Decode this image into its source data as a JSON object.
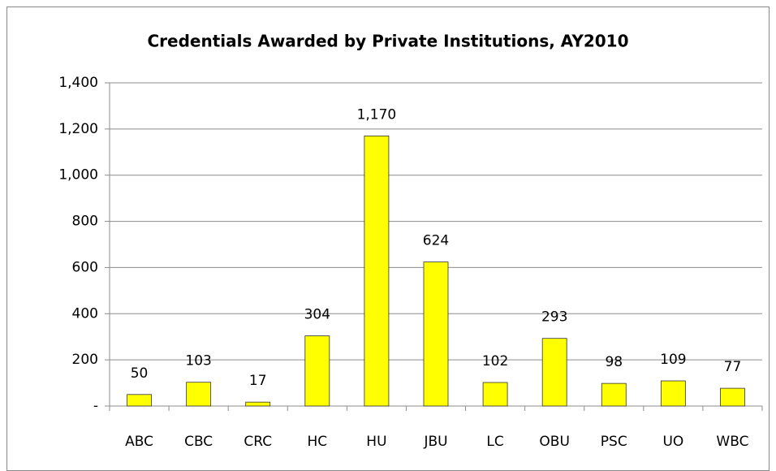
{
  "chart_data": {
    "type": "bar",
    "title": "Credentials Awarded by Private Institutions, AY2010",
    "categories": [
      "ABC",
      "CBC",
      "CRC",
      "HC",
      "HU",
      "JBU",
      "LC",
      "OBU",
      "PSC",
      "UO",
      "WBC"
    ],
    "values": [
      50,
      103,
      17,
      304,
      1170,
      624,
      102,
      293,
      98,
      109,
      77
    ],
    "value_labels": [
      "50",
      "103",
      "17",
      "304",
      "1,170",
      "624",
      "102",
      "293",
      "98",
      "109",
      "77"
    ],
    "color": "#ffff00",
    "ylim": [
      0,
      1400
    ],
    "yticks": [
      {
        "value": 0,
        "label": "-"
      },
      200,
      400,
      600,
      800,
      {
        "value": 1000,
        "label": "1,000"
      },
      {
        "value": 1200,
        "label": "1,200"
      },
      {
        "value": 1400,
        "label": "1,400"
      }
    ],
    "grid": true
  }
}
